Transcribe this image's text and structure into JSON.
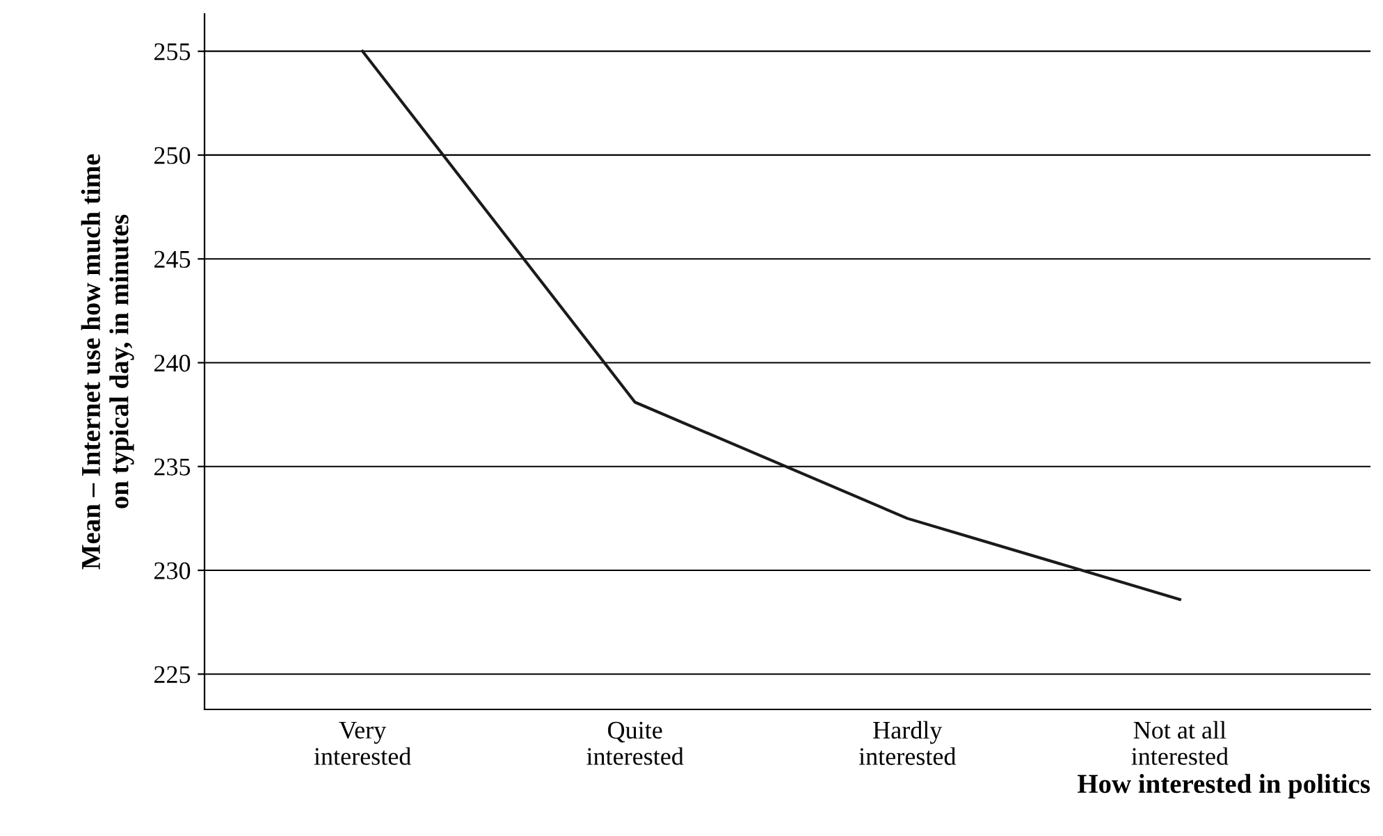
{
  "chart_data": {
    "type": "line",
    "categories": [
      "Very\ninterested",
      "Quite\ninterested",
      "Hardly\ninterested",
      "Not at all\ninterested"
    ],
    "series": [
      {
        "color": "#1a1a1a",
        "values": [
          255,
          238.1,
          232.5,
          228.6
        ]
      }
    ],
    "ylabel": "Mean – Internet use how much time\non typical day, in minutes",
    "xlabel": "How interested in politics",
    "ylim": [
      223.3,
      256.8
    ],
    "yticks": [
      225,
      230,
      235,
      240,
      245,
      250,
      255
    ],
    "grid": "y",
    "marker": "none",
    "line_style": "solid"
  }
}
